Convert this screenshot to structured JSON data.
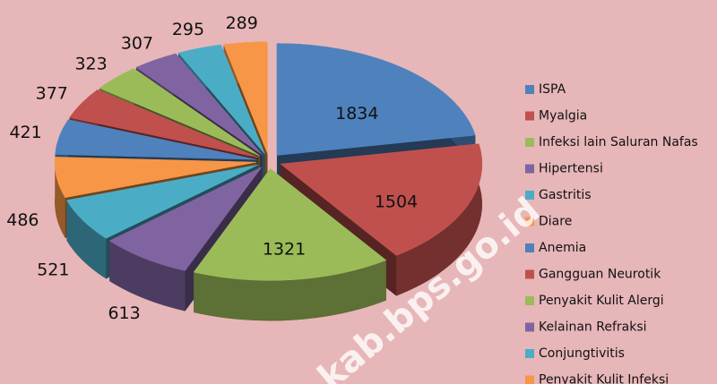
{
  "chart_data": {
    "type": "pie",
    "categories": [
      "ISPA",
      "Myalgia",
      "Infeksi lain Saluran Nafas",
      "Hipertensi",
      "Gastritis",
      "Diare",
      "Anemia",
      "Gangguan Neurotik",
      "Penyakit Kulit Alergi",
      "Kelainan Refraksi",
      "Conjungtivitis",
      "Penyakit Kulit Infeksi"
    ],
    "values": [
      1834,
      1504,
      1321,
      613,
      521,
      486,
      421,
      377,
      323,
      307,
      295,
      289
    ],
    "colors": [
      "#4f81bd",
      "#c0504d",
      "#9bbb59",
      "#8064a2",
      "#4bacc6",
      "#f79646",
      "#4f81bd",
      "#c0504d",
      "#9bbb59",
      "#8064a2",
      "#4bacc6",
      "#f79646"
    ],
    "legend": "right",
    "annotations": [
      "kab.bps.go.id"
    ]
  }
}
